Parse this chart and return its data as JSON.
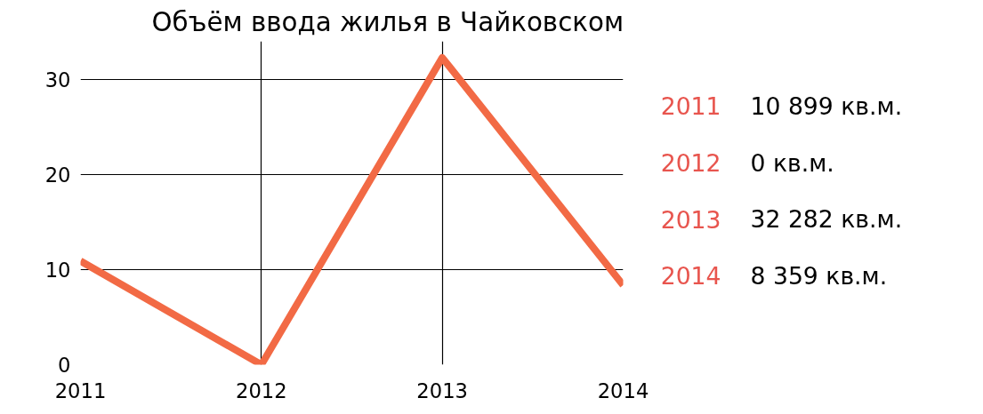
{
  "chart_data": {
    "type": "line",
    "title": "Объём ввода жилья в Чайковском",
    "categories": [
      "2011",
      "2012",
      "2013",
      "2014"
    ],
    "series": [
      {
        "color": "#f26a45",
        "values": [
          10.899,
          0,
          32.282,
          8.359
        ]
      }
    ],
    "ylim": [
      0,
      34
    ],
    "yticks": [
      0,
      10,
      20,
      30
    ],
    "grid": true,
    "marker": "none",
    "line_style": "solid",
    "annotations": [
      "2011",
      "10 899 кв.м.",
      "2012",
      "0 кв.м.",
      "2013",
      "32 282 кв.м.",
      "2014",
      "8 359 кв.м."
    ]
  }
}
